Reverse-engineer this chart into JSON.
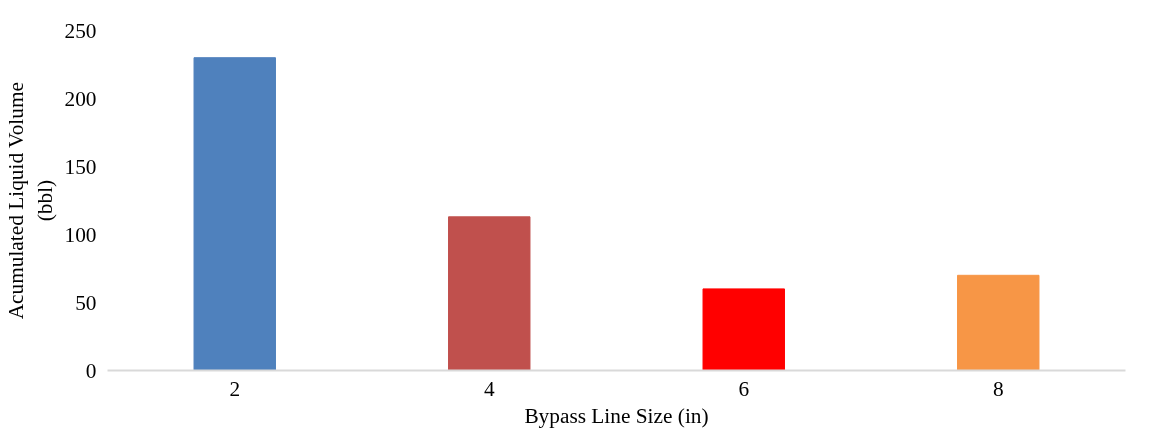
{
  "chart_data": {
    "type": "bar",
    "xlabel": "Bypass Line Size (in)",
    "ylabel": "Acumulated Liquid Volume\n(bbl)",
    "categories": [
      "2",
      "4",
      "6",
      "8"
    ],
    "values": [
      230,
      113,
      60,
      70
    ],
    "colors": [
      "#4f81bd",
      "#c0504d",
      "#ff0000",
      "#f79646"
    ],
    "ylim": [
      0,
      250
    ],
    "yticks": [
      0,
      50,
      100,
      150,
      200,
      250
    ],
    "grid": false
  }
}
